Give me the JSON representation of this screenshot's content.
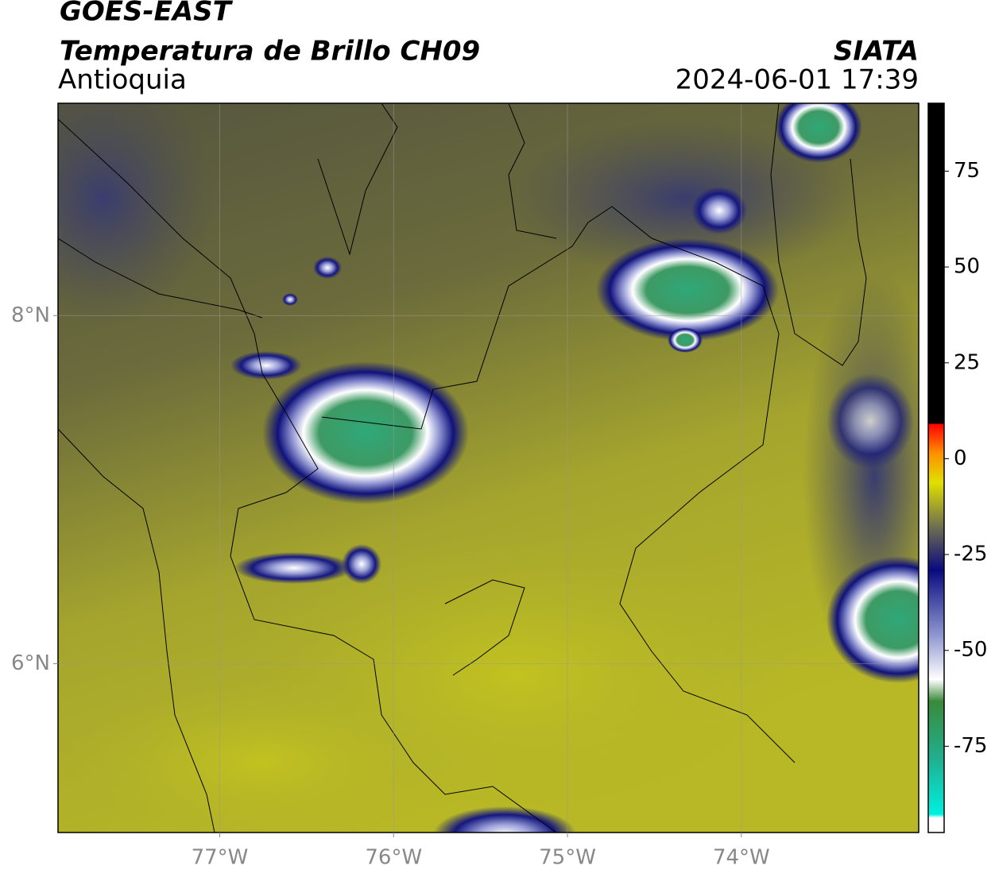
{
  "header": {
    "title": "GOES-EAST",
    "subtitle": "Temperatura de Brillo CH09",
    "region": "Antioquia",
    "source": "SIATA",
    "datetime": "2024-06-01 17:39"
  },
  "map": {
    "xlim": [
      -77.93,
      -72.98
    ],
    "ylim": [
      5.03,
      9.22
    ],
    "xticks": [
      {
        "value": -77,
        "label": "77°W"
      },
      {
        "value": -76,
        "label": "76°W"
      },
      {
        "value": -75,
        "label": "75°W"
      },
      {
        "value": -74,
        "label": "74°W"
      }
    ],
    "yticks": [
      {
        "value": 8,
        "label": "8°N"
      },
      {
        "value": 6,
        "label": "6°N"
      }
    ],
    "grid": true
  },
  "colorbar": {
    "lim": [
      -97.5,
      92.7
    ],
    "ticks": [
      75,
      50,
      25,
      0,
      -25,
      -50,
      -75
    ]
  }
}
